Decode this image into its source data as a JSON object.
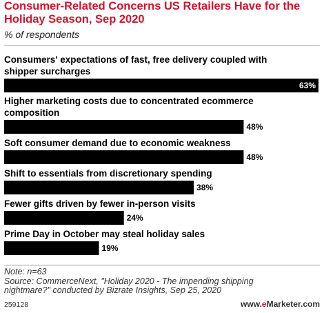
{
  "chart_data": {
    "type": "bar",
    "orientation": "horizontal",
    "title": "Consumer-Related Concerns US Retailers Have for the Holiday Season, Sep 2020",
    "subtitle": "% of respondents",
    "categories": [
      [
        "Consumers' expectations of fast, free delivery coupled with",
        "shipper surcharges"
      ],
      [
        "Higher marketing costs due to concentrated ecommerce",
        "composition"
      ],
      [
        "Soft consumer demand due to economic weakness"
      ],
      [
        "Shift to essentials from discretionary spending"
      ],
      [
        "Fewer gifts driven by fewer in-person visits"
      ],
      [
        "Prime Day in October may steal holiday sales"
      ]
    ],
    "values": [
      63,
      48,
      48,
      38,
      24,
      19
    ],
    "value_labels": [
      "63%",
      "48%",
      "48%",
      "38%",
      "24%",
      "19%"
    ],
    "bar_color": "#000000",
    "xlim": [
      0,
      63
    ],
    "grid": false,
    "legend": "none"
  },
  "footer": {
    "note": "Note: n=63",
    "source_line1": "Source: CommerceNext, \"Holiday 2020 - The impending shipping",
    "source_line2": "nightmare?\" conducted by Bizrate Insights, Sep 25, 2020",
    "chart_id": "259128",
    "brand_prefix": "www.",
    "brand_e": "e",
    "brand_rest": "Marketer",
    "brand_suffix": ".com"
  },
  "colors": {
    "title": "#d0152e",
    "bar": "#000000",
    "value_inside": "#ffffff",
    "value_outside": "#000000"
  }
}
